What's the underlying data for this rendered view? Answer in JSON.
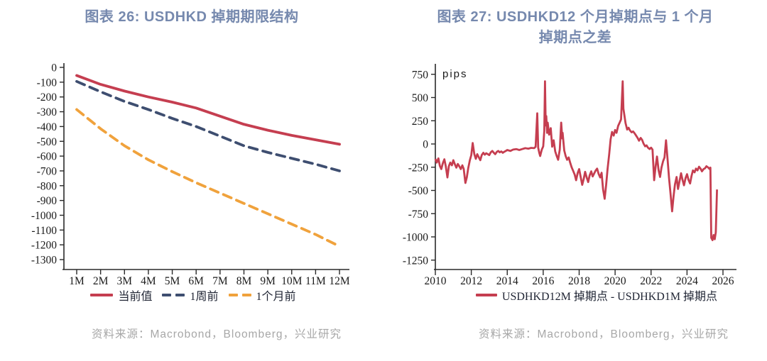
{
  "left_panel": {
    "title": "图表 26: USDHKD 掉期期限结构",
    "source": "资料来源：Macrobond，Bloomberg，兴业研究"
  },
  "right_panel": {
    "title_lines": [
      "图表 27: USDHKD12 个月掉期点与 1 个月",
      "掉期点之差"
    ],
    "source": "资料来源：Macrobond，Bloomberg，兴业研究"
  },
  "colors": {
    "title": "#7689AE",
    "red": "#C53E50",
    "navy": "#3E4E70",
    "orange": "#F0A23C",
    "axis": "#2a2a2a",
    "source_gray": "#A7A7A7"
  },
  "chart_data": [
    {
      "type": "line",
      "title": "图表 26: USDHKD 掉期期限结构",
      "categories": [
        "1M",
        "2M",
        "3M",
        "4M",
        "5M",
        "6M",
        "7M",
        "8M",
        "9M",
        "10M",
        "11M",
        "12M"
      ],
      "series": [
        {
          "name": "当前值",
          "color": "#C53E50",
          "dash": "solid",
          "values": [
            -55,
            -115,
            -160,
            -200,
            -235,
            -275,
            -330,
            -385,
            -425,
            -460,
            -490,
            -520
          ]
        },
        {
          "name": "1周前",
          "color": "#3E4E70",
          "dash": "dashed",
          "values": [
            -95,
            -165,
            -230,
            -285,
            -345,
            -400,
            -465,
            -530,
            -575,
            -615,
            -655,
            -700
          ]
        },
        {
          "name": "1个月前",
          "color": "#F0A23C",
          "dash": "dashed",
          "values": [
            -285,
            -415,
            -530,
            -625,
            -705,
            -780,
            -850,
            -920,
            -990,
            -1060,
            -1130,
            -1210
          ]
        }
      ],
      "yticks": [
        0,
        -100,
        -200,
        -300,
        -400,
        -500,
        -600,
        -700,
        -800,
        -900,
        -1000,
        -1100,
        -1200,
        -1300
      ],
      "ylim": [
        -1350,
        0
      ],
      "grid": false,
      "legend_position": "bottom"
    },
    {
      "type": "line",
      "title": "图表 27: USDHKD12 个月掉期点与 1 个月掉期点之差",
      "ylabel": "pips",
      "xticks": [
        2010,
        2012,
        2014,
        2016,
        2018,
        2020,
        2022,
        2024,
        2026
      ],
      "yticks": [
        750,
        500,
        250,
        0,
        -250,
        -500,
        -750,
        -1000,
        -1250
      ],
      "xlim": [
        2009.7,
        2026.3
      ],
      "ylim": [
        -1250,
        750
      ],
      "grid": false,
      "legend_position": "bottom",
      "series": [
        {
          "name": "USDHKD12M 掉期点 - USDHKD1M 掉期点",
          "color": "#C53E50",
          "dash": "solid",
          "points": [
            [
              2010.0,
              -160
            ],
            [
              2010.08,
              -200
            ],
            [
              2010.17,
              -155
            ],
            [
              2010.25,
              -235
            ],
            [
              2010.33,
              -270
            ],
            [
              2010.42,
              -205
            ],
            [
              2010.5,
              -165
            ],
            [
              2010.58,
              -240
            ],
            [
              2010.67,
              -360
            ],
            [
              2010.75,
              -240
            ],
            [
              2010.83,
              -200
            ],
            [
              2010.92,
              -230
            ],
            [
              2011.0,
              -175
            ],
            [
              2011.08,
              -215
            ],
            [
              2011.17,
              -255
            ],
            [
              2011.25,
              -215
            ],
            [
              2011.33,
              -240
            ],
            [
              2011.42,
              -270
            ],
            [
              2011.5,
              -230
            ],
            [
              2011.58,
              -270
            ],
            [
              2011.67,
              -420
            ],
            [
              2011.75,
              -360
            ],
            [
              2011.83,
              -260
            ],
            [
              2011.92,
              -175
            ],
            [
              2012.0,
              -120
            ],
            [
              2012.08,
              10
            ],
            [
              2012.17,
              -110
            ],
            [
              2012.25,
              -160
            ],
            [
              2012.33,
              -110
            ],
            [
              2012.42,
              -145
            ],
            [
              2012.5,
              -175
            ],
            [
              2012.58,
              -120
            ],
            [
              2012.67,
              -95
            ],
            [
              2012.75,
              -115
            ],
            [
              2012.83,
              -100
            ],
            [
              2012.92,
              -110
            ],
            [
              2013.0,
              -120
            ],
            [
              2013.08,
              -90
            ],
            [
              2013.17,
              -75
            ],
            [
              2013.25,
              -95
            ],
            [
              2013.33,
              -110
            ],
            [
              2013.42,
              -85
            ],
            [
              2013.5,
              -75
            ],
            [
              2013.58,
              -90
            ],
            [
              2013.67,
              -80
            ],
            [
              2013.75,
              -95
            ],
            [
              2013.83,
              -85
            ],
            [
              2013.92,
              -75
            ],
            [
              2014.0,
              -65
            ],
            [
              2014.17,
              -75
            ],
            [
              2014.33,
              -60
            ],
            [
              2014.5,
              -55
            ],
            [
              2014.67,
              -65
            ],
            [
              2014.83,
              -55
            ],
            [
              2015.0,
              -45
            ],
            [
              2015.17,
              -50
            ],
            [
              2015.33,
              -42
            ],
            [
              2015.5,
              -45
            ],
            [
              2015.58,
              -30
            ],
            [
              2015.67,
              330
            ],
            [
              2015.72,
              -40
            ],
            [
              2015.78,
              -95
            ],
            [
              2015.83,
              -130
            ],
            [
              2015.92,
              -60
            ],
            [
              2016.0,
              -25
            ],
            [
              2016.06,
              140
            ],
            [
              2016.1,
              675
            ],
            [
              2016.14,
              200
            ],
            [
              2016.17,
              300
            ],
            [
              2016.22,
              120
            ],
            [
              2016.25,
              230
            ],
            [
              2016.33,
              100
            ],
            [
              2016.42,
              170
            ],
            [
              2016.5,
              -30
            ],
            [
              2016.58,
              40
            ],
            [
              2016.67,
              -80
            ],
            [
              2016.75,
              -130
            ],
            [
              2016.83,
              -170
            ],
            [
              2016.92,
              -60
            ],
            [
              2017.0,
              230
            ],
            [
              2017.06,
              60
            ],
            [
              2017.08,
              120
            ],
            [
              2017.17,
              -70
            ],
            [
              2017.25,
              -130
            ],
            [
              2017.33,
              -170
            ],
            [
              2017.42,
              -145
            ],
            [
              2017.5,
              -200
            ],
            [
              2017.58,
              -250
            ],
            [
              2017.67,
              -290
            ],
            [
              2017.75,
              -330
            ],
            [
              2017.83,
              -390
            ],
            [
              2017.92,
              -310
            ],
            [
              2018.0,
              -270
            ],
            [
              2018.08,
              -350
            ],
            [
              2018.17,
              -440
            ],
            [
              2018.25,
              -380
            ],
            [
              2018.33,
              -300
            ],
            [
              2018.42,
              -360
            ],
            [
              2018.5,
              -410
            ],
            [
              2018.58,
              -340
            ],
            [
              2018.67,
              -295
            ],
            [
              2018.75,
              -350
            ],
            [
              2018.83,
              -320
            ],
            [
              2018.92,
              -285
            ],
            [
              2019.0,
              -265
            ],
            [
              2019.08,
              -320
            ],
            [
              2019.17,
              -360
            ],
            [
              2019.25,
              -310
            ],
            [
              2019.33,
              -490
            ],
            [
              2019.42,
              -590
            ],
            [
              2019.5,
              -440
            ],
            [
              2019.58,
              -270
            ],
            [
              2019.67,
              -110
            ],
            [
              2019.75,
              50
            ],
            [
              2019.83,
              130
            ],
            [
              2019.92,
              90
            ],
            [
              2020.0,
              150
            ],
            [
              2020.08,
              120
            ],
            [
              2020.17,
              195
            ],
            [
              2020.25,
              230
            ],
            [
              2020.33,
              265
            ],
            [
              2020.42,
              675
            ],
            [
              2020.46,
              380
            ],
            [
              2020.5,
              330
            ],
            [
              2020.58,
              225
            ],
            [
              2020.67,
              155
            ],
            [
              2020.75,
              175
            ],
            [
              2020.83,
              145
            ],
            [
              2020.92,
              125
            ],
            [
              2021.0,
              135
            ],
            [
              2021.08,
              115
            ],
            [
              2021.17,
              90
            ],
            [
              2021.25,
              65
            ],
            [
              2021.33,
              35
            ],
            [
              2021.42,
              65
            ],
            [
              2021.5,
              45
            ],
            [
              2021.58,
              5
            ],
            [
              2021.67,
              -25
            ],
            [
              2021.75,
              -15
            ],
            [
              2021.83,
              -40
            ],
            [
              2021.92,
              -55
            ],
            [
              2022.0,
              -40
            ],
            [
              2022.08,
              -60
            ],
            [
              2022.17,
              -390
            ],
            [
              2022.25,
              -245
            ],
            [
              2022.33,
              -135
            ],
            [
              2022.42,
              -285
            ],
            [
              2022.5,
              -355
            ],
            [
              2022.58,
              -255
            ],
            [
              2022.67,
              -185
            ],
            [
              2022.75,
              -145
            ],
            [
              2022.83,
              40
            ],
            [
              2022.92,
              -165
            ],
            [
              2023.0,
              -370
            ],
            [
              2023.08,
              -530
            ],
            [
              2023.17,
              -725
            ],
            [
              2023.25,
              -565
            ],
            [
              2023.33,
              -435
            ],
            [
              2023.42,
              -355
            ],
            [
              2023.5,
              -485
            ],
            [
              2023.58,
              -405
            ],
            [
              2023.67,
              -315
            ],
            [
              2023.75,
              -385
            ],
            [
              2023.83,
              -445
            ],
            [
              2023.92,
              -365
            ],
            [
              2024.0,
              -325
            ],
            [
              2024.08,
              -385
            ],
            [
              2024.17,
              -425
            ],
            [
              2024.25,
              -345
            ],
            [
              2024.33,
              -285
            ],
            [
              2024.42,
              -305
            ],
            [
              2024.5,
              -265
            ],
            [
              2024.58,
              -285
            ],
            [
              2024.67,
              -245
            ],
            [
              2024.75,
              -265
            ],
            [
              2024.83,
              -295
            ],
            [
              2024.92,
              -270
            ],
            [
              2025.0,
              -262
            ],
            [
              2025.08,
              -240
            ],
            [
              2025.17,
              -252
            ],
            [
              2025.25,
              -268
            ],
            [
              2025.3,
              -255
            ],
            [
              2025.35,
              -1010
            ],
            [
              2025.42,
              -1035
            ],
            [
              2025.48,
              -980
            ],
            [
              2025.54,
              -1025
            ],
            [
              2025.6,
              -950
            ],
            [
              2025.67,
              -490
            ]
          ]
        }
      ]
    }
  ]
}
